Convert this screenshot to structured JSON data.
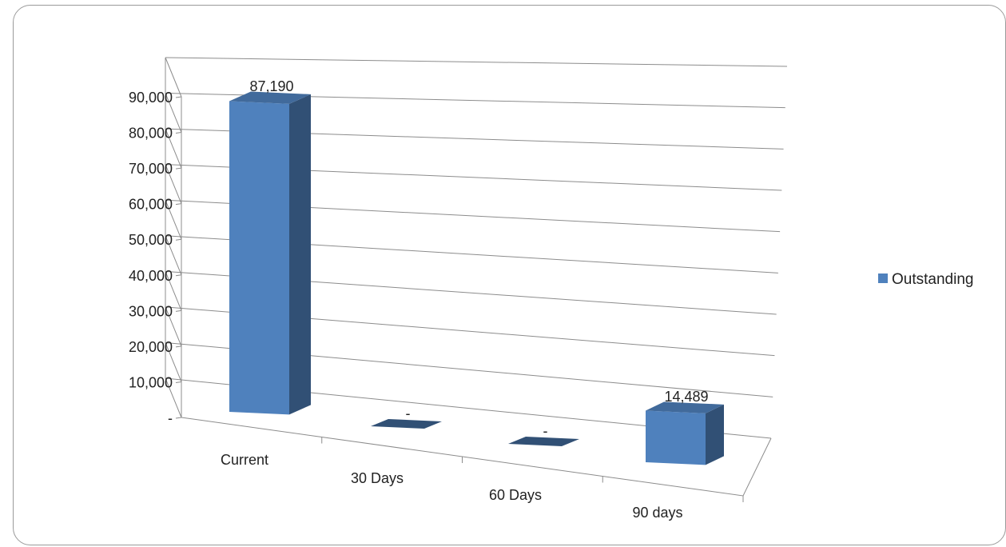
{
  "chart_data": {
    "type": "bar",
    "title": "",
    "xlabel": "",
    "ylabel": "",
    "categories": [
      "Current",
      "30 Days",
      "60 Days",
      "90 days"
    ],
    "series": [
      {
        "name": "Outstanding",
        "values": [
          87190,
          0,
          0,
          14489
        ],
        "color": "#4f81bd"
      }
    ],
    "data_labels": [
      "87,190",
      "-",
      "-",
      "14,489"
    ],
    "y_ticks": [
      "-",
      "10,000",
      "20,000",
      "30,000",
      "40,000",
      "50,000",
      "60,000",
      "70,000",
      "80,000",
      "90,000"
    ],
    "ylim": [
      0,
      90000
    ],
    "grid": true,
    "legend_position": "right",
    "style": "3d-column"
  }
}
